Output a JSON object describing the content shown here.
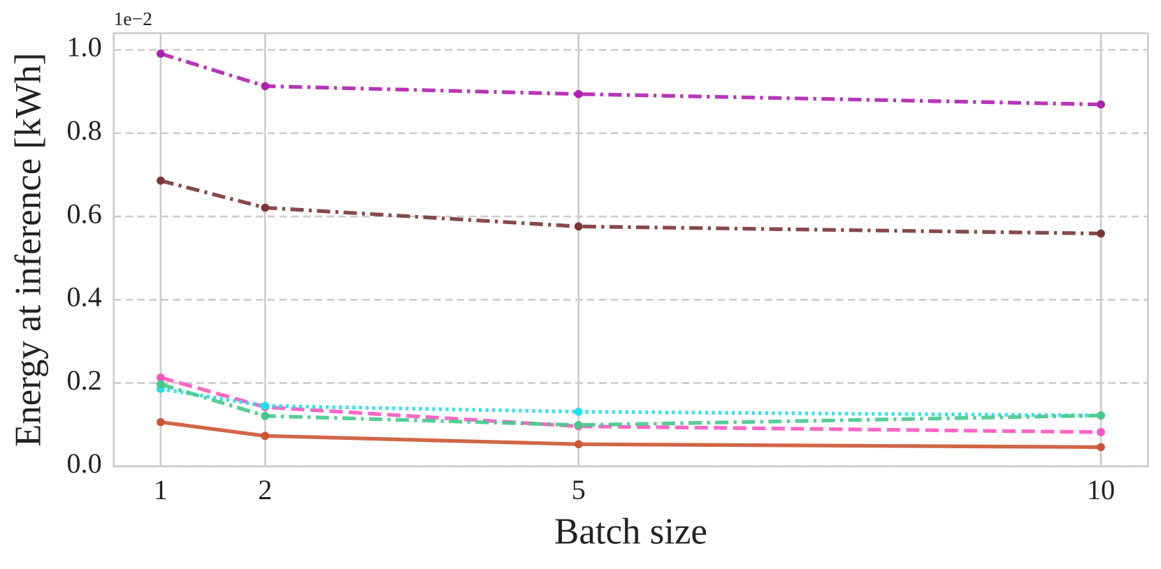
{
  "chart_data": {
    "type": "line",
    "xlabel": "Batch size",
    "ylabel": "Energy at inference [kWh]",
    "y_offset_label": "1e−2",
    "x": [
      1,
      2,
      5,
      10
    ],
    "xlim": [
      0.55,
      10.45
    ],
    "xticks": [
      1,
      2,
      5,
      10
    ],
    "ylim": [
      0,
      1.04
    ],
    "yticks": [
      {
        "value": 0,
        "label": "0.0"
      },
      0.2,
      0.4,
      0.6,
      0.8,
      {
        "value": 1,
        "label": "1.0"
      }
    ],
    "grid": true,
    "series": [
      {
        "color": "#b01fb0",
        "linestyle": "dashdot",
        "values": [
          0.991,
          0.913,
          0.894,
          0.869
        ]
      },
      {
        "color": "#7b3535",
        "linestyle": "dashdot",
        "values": [
          0.686,
          0.621,
          0.576,
          0.559
        ]
      },
      {
        "color": "#ff55c0",
        "linestyle": "dashed",
        "values": [
          0.213,
          0.142,
          0.096,
          0.082
        ]
      },
      {
        "color": "#22ddee",
        "linestyle": "dotted",
        "values": [
          0.186,
          0.145,
          0.131,
          0.122
        ]
      },
      {
        "color": "#44c98a",
        "linestyle": "dashdot",
        "values": [
          0.197,
          0.121,
          0.099,
          0.122
        ]
      },
      {
        "color": "#cc5533",
        "linestyle": "solid",
        "values": [
          0.106,
          0.073,
          0.053,
          0.046
        ]
      }
    ]
  }
}
